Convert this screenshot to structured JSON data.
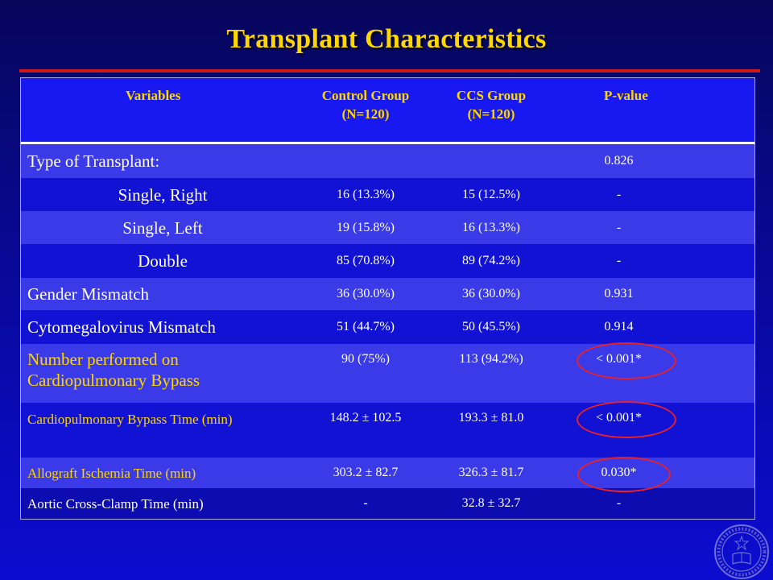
{
  "slide": {
    "title": "Transplant Characteristics"
  },
  "table": {
    "headers": {
      "variables": "Variables",
      "control_line1": "Control Group",
      "control_line2": "(N=120)",
      "ccs_line1": "CCS Group",
      "ccs_line2": "(N=120)",
      "pvalue": "P-value"
    },
    "rows": [
      {
        "label": "Type of Transplant:",
        "control": "",
        "ccs": "",
        "p": "0.826"
      },
      {
        "label": "Single, Right",
        "control": "16 (13.3%)",
        "ccs": "15 (12.5%)",
        "p": "-"
      },
      {
        "label": "Single, Left",
        "control": "19 (15.8%)",
        "ccs": "16 (13.3%)",
        "p": "-"
      },
      {
        "label": "Double",
        "control": "85 (70.8%)",
        "ccs": "89 (74.2%)",
        "p": "-"
      },
      {
        "label": "Gender Mismatch",
        "control": "36 (30.0%)",
        "ccs": "36 (30.0%)",
        "p": "0.931"
      },
      {
        "label": "Cytomegalovirus Mismatch",
        "control": "51 (44.7%)",
        "ccs": "50 (45.5%)",
        "p": "0.914"
      },
      {
        "label": "Number performed on Cardiopulmonary Bypass",
        "control": "90 (75%)",
        "ccs": "113 (94.2%)",
        "p": "< 0.001*"
      },
      {
        "label": "Cardiopulmonary Bypass Time (min)",
        "control": "148.2 ± 102.5",
        "ccs": "193.3 ± 81.0",
        "p": "< 0.001*"
      },
      {
        "label": "Allograft Ischemia Time (min)",
        "control": "303.2 ± 82.7",
        "ccs": "326.3 ± 81.7",
        "p": "0.030*"
      },
      {
        "label": "Aortic Cross-Clamp Time (min)",
        "control": "-",
        "ccs": "32.8 ± 32.7",
        "p": "-"
      }
    ]
  },
  "colors": {
    "background": "#08088a",
    "title": "#ffd700",
    "rule": "#cc1a1a",
    "highlight_circle": "#e8202a",
    "row_light": "#3a3ae8",
    "row_dark": "#1212d4"
  },
  "seal_icon": "university-seal-icon"
}
